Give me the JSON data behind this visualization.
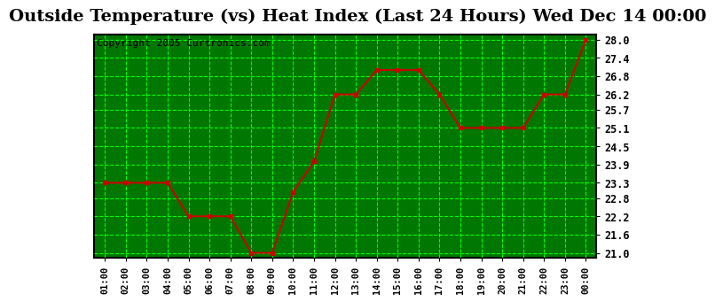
{
  "title": "Outside Temperature (vs) Heat Index (Last 24 Hours) Wed Dec 14 00:00",
  "copyright": "Copyright 2005 Curtronics.com",
  "x_labels": [
    "01:00",
    "02:00",
    "03:00",
    "04:00",
    "05:00",
    "06:00",
    "07:00",
    "08:00",
    "09:00",
    "10:00",
    "11:00",
    "12:00",
    "13:00",
    "14:00",
    "15:00",
    "16:00",
    "17:00",
    "18:00",
    "19:00",
    "20:00",
    "21:00",
    "22:00",
    "23:00",
    "00:00"
  ],
  "y_values": [
    23.3,
    23.3,
    23.3,
    23.3,
    22.2,
    22.2,
    22.2,
    21.0,
    21.0,
    23.0,
    24.0,
    26.2,
    26.2,
    27.0,
    27.0,
    27.0,
    26.2,
    25.1,
    25.1,
    25.1,
    25.1,
    26.2,
    26.2,
    28.0
  ],
  "yticks": [
    21.0,
    21.6,
    22.2,
    22.8,
    23.3,
    23.9,
    24.5,
    25.1,
    25.7,
    26.2,
    26.8,
    27.4,
    28.0
  ],
  "ylim": [
    20.85,
    28.15
  ],
  "line_color": "#cc0000",
  "marker_color": "#cc0000",
  "fig_bg_color": "#ffffff",
  "plot_bg_color": "#007700",
  "grid_color": "#00ff00",
  "grid_minor_color": "#005500",
  "title_fontsize": 14,
  "axis_label_fontsize": 9,
  "copyright_fontsize": 8,
  "tick_label_color": "#000000",
  "title_color": "#000000",
  "spine_color": "#000000"
}
